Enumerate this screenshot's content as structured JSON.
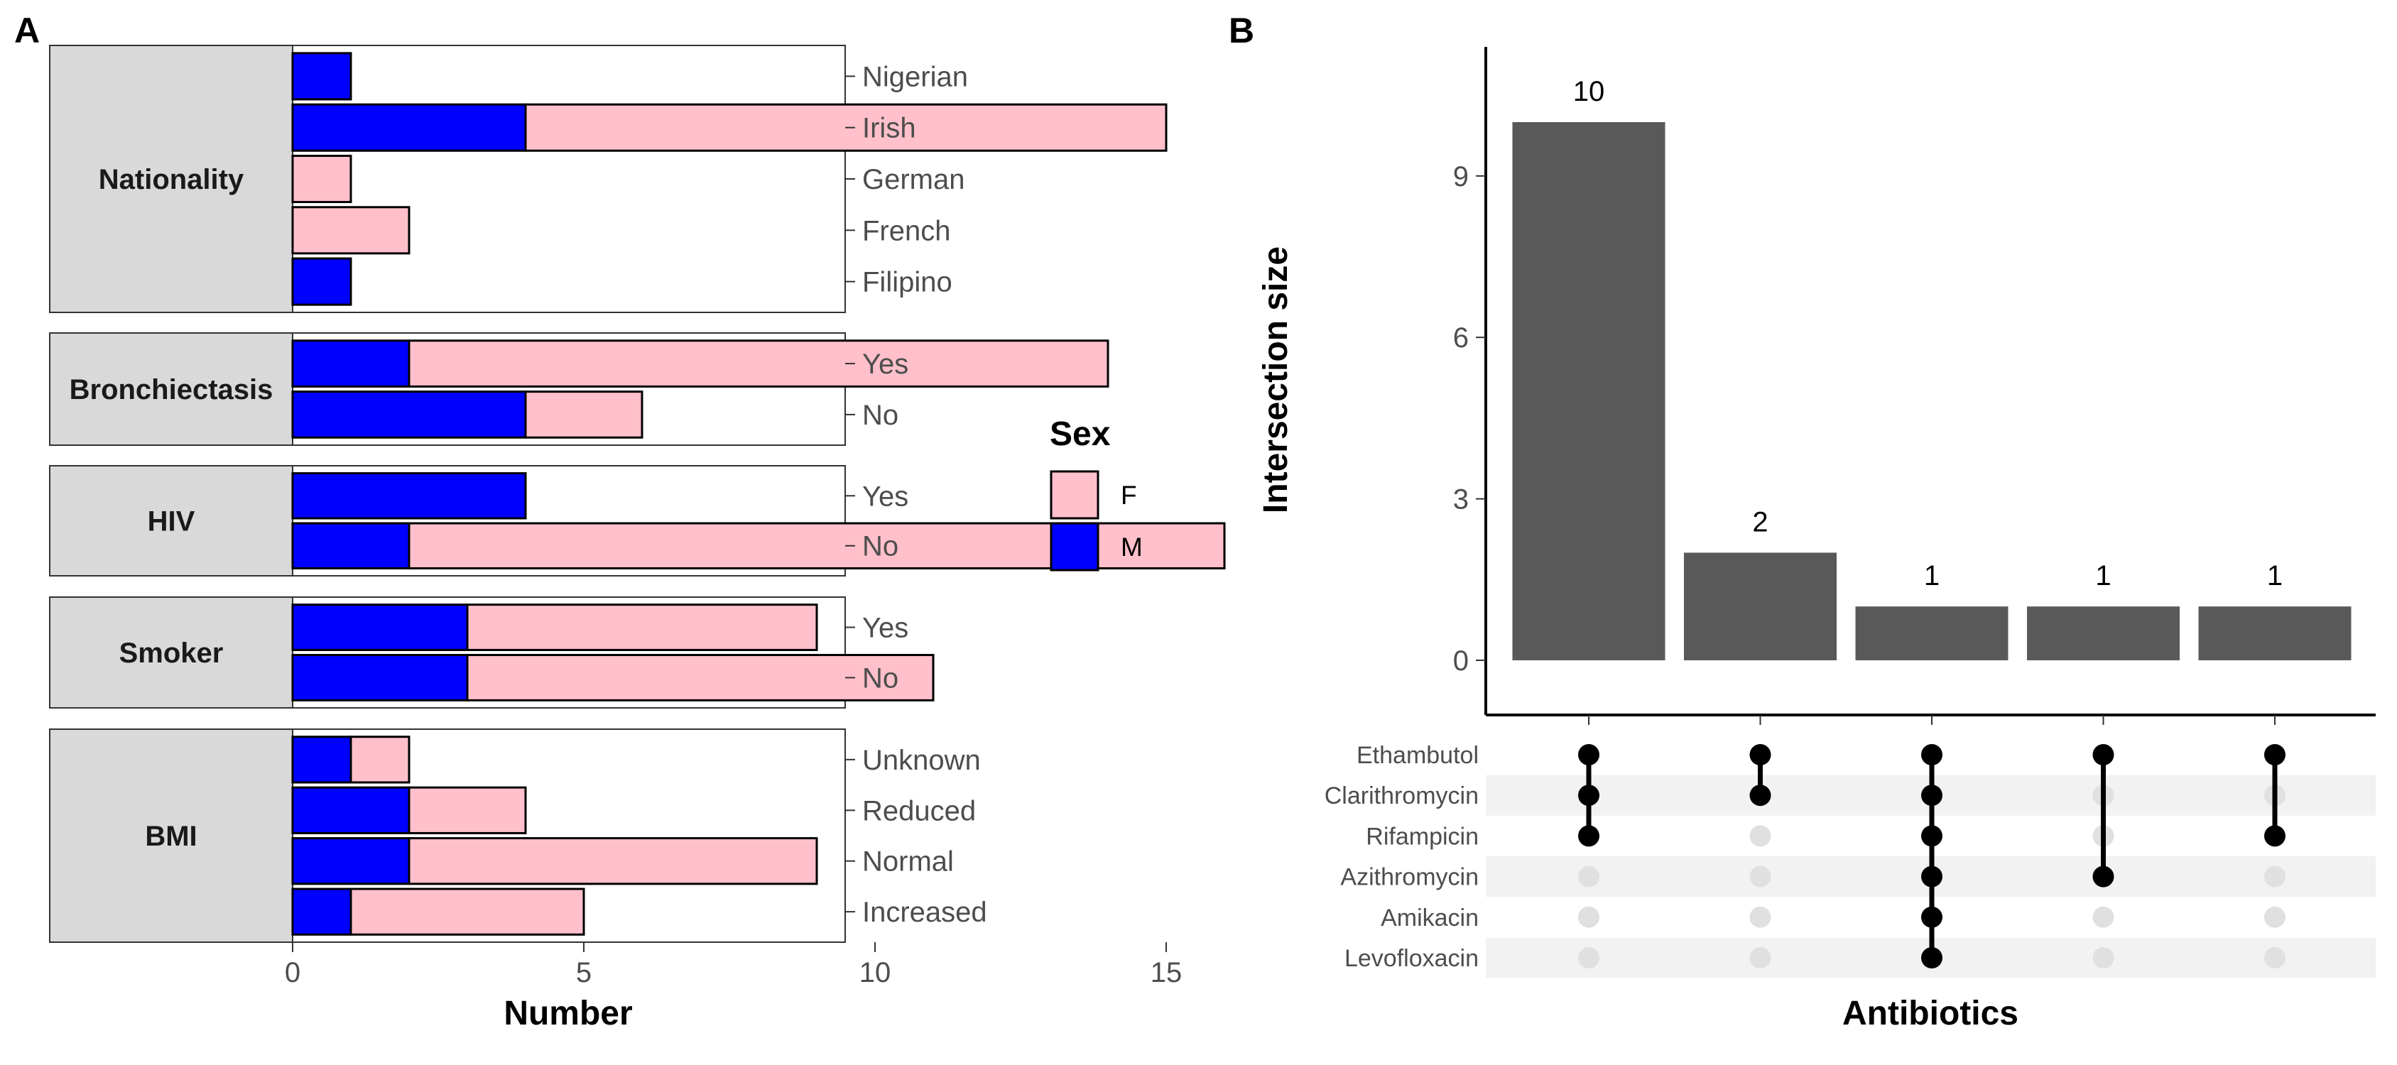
{
  "chart_data": [
    {
      "panel": "A",
      "type": "bar",
      "orientation": "horizontal",
      "stacked": true,
      "xlabel": "Number",
      "xticks": [
        0,
        5,
        10,
        15
      ],
      "xlim": [
        0,
        19
      ],
      "legend": {
        "title": "Sex",
        "position": "right",
        "entries": [
          {
            "label": "F",
            "color": "#ffc0cb"
          },
          {
            "label": "M",
            "color": "#0000ff"
          }
        ]
      },
      "series": [
        {
          "name": "M",
          "color": "#0000ff"
        },
        {
          "name": "F",
          "color": "#ffc0cb"
        }
      ],
      "facets": [
        {
          "label": "Nationality",
          "categories": [
            {
              "label": "Nigerian",
              "M": 1,
              "F": 0
            },
            {
              "label": "Irish",
              "M": 4,
              "F": 11
            },
            {
              "label": "German",
              "M": 0,
              "F": 1
            },
            {
              "label": "French",
              "M": 0,
              "F": 2
            },
            {
              "label": "Filipino",
              "M": 1,
              "F": 0
            }
          ]
        },
        {
          "label": "Bronchiectasis",
          "categories": [
            {
              "label": "Yes",
              "M": 2,
              "F": 12
            },
            {
              "label": "No",
              "M": 4,
              "F": 2
            }
          ]
        },
        {
          "label": "HIV",
          "categories": [
            {
              "label": "Yes",
              "M": 4,
              "F": 0
            },
            {
              "label": "No",
              "M": 2,
              "F": 14
            }
          ]
        },
        {
          "label": "Smoker",
          "categories": [
            {
              "label": "Yes",
              "M": 3,
              "F": 6
            },
            {
              "label": "No",
              "M": 3,
              "F": 8
            }
          ]
        },
        {
          "label": "BMI",
          "categories": [
            {
              "label": "Unknown",
              "M": 1,
              "F": 1
            },
            {
              "label": "Reduced",
              "M": 2,
              "F": 2
            },
            {
              "label": "Normal",
              "M": 2,
              "F": 7
            },
            {
              "label": "Increased",
              "M": 1,
              "F": 4
            }
          ]
        }
      ]
    },
    {
      "panel": "B",
      "type": "bar",
      "subtype": "upset",
      "ylabel": "Intersection size",
      "xlabel": "Antibiotics",
      "yticks": [
        0,
        3,
        6,
        9
      ],
      "ylim": [
        0,
        10.5
      ],
      "bar_color": "#595959",
      "sets": [
        "Ethambutol",
        "Clarithromycin",
        "Rifampicin",
        "Azithromycin",
        "Amikacin",
        "Levofloxacin"
      ],
      "intersections": [
        {
          "size": 10,
          "sets": [
            "Ethambutol",
            "Clarithromycin",
            "Rifampicin"
          ]
        },
        {
          "size": 2,
          "sets": [
            "Ethambutol",
            "Clarithromycin"
          ]
        },
        {
          "size": 1,
          "sets": [
            "Ethambutol",
            "Clarithromycin",
            "Rifampicin",
            "Azithromycin",
            "Amikacin",
            "Levofloxacin"
          ]
        },
        {
          "size": 1,
          "sets": [
            "Ethambutol",
            "Azithromycin"
          ]
        },
        {
          "size": 1,
          "sets": [
            "Ethambutol",
            "Rifampicin"
          ]
        }
      ]
    }
  ]
}
